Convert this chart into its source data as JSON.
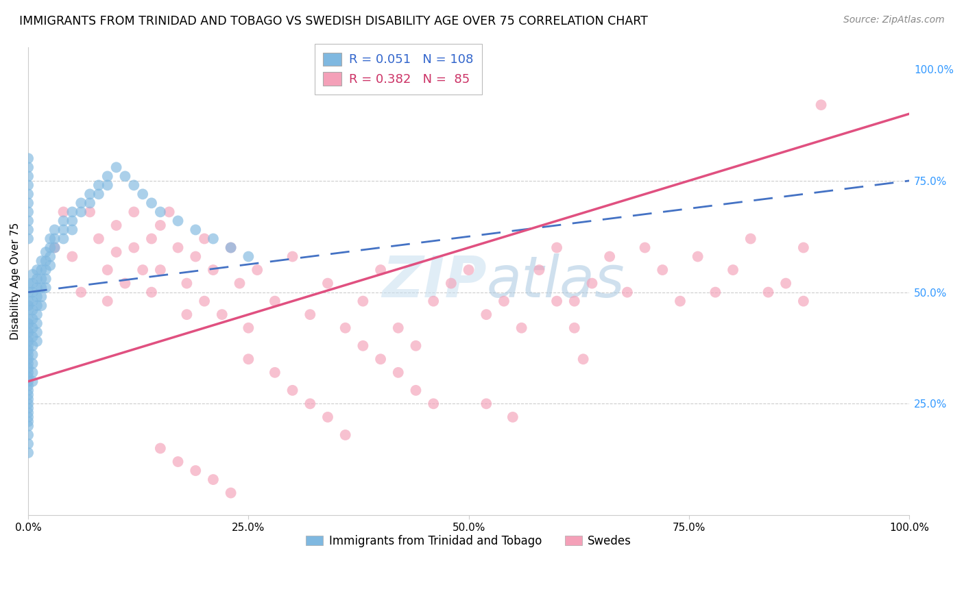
{
  "title": "IMMIGRANTS FROM TRINIDAD AND TOBAGO VS SWEDISH DISABILITY AGE OVER 75 CORRELATION CHART",
  "source": "Source: ZipAtlas.com",
  "ylabel": "Disability Age Over 75",
  "xlim": [
    0.0,
    1.0
  ],
  "ylim": [
    0.0,
    1.05
  ],
  "xtick_labels": [
    "0.0%",
    "25.0%",
    "50.0%",
    "75.0%",
    "100.0%"
  ],
  "xtick_vals": [
    0.0,
    0.25,
    0.5,
    0.75,
    1.0
  ],
  "ytick_right_vals": [
    0.25,
    0.5,
    0.75,
    1.0
  ],
  "ytick_right_labels": [
    "25.0%",
    "50.0%",
    "75.0%",
    "100.0%"
  ],
  "blue_R": 0.051,
  "blue_N": 108,
  "pink_R": 0.382,
  "pink_N": 85,
  "blue_color": "#7fb8e0",
  "pink_color": "#f4a0b8",
  "blue_line_color": "#4472c4",
  "pink_line_color": "#e05080",
  "legend_label_blue": "Immigrants from Trinidad and Tobago",
  "legend_label_pink": "Swedes",
  "blue_scatter_x": [
    0.0,
    0.0,
    0.0,
    0.0,
    0.0,
    0.0,
    0.0,
    0.0,
    0.0,
    0.0,
    0.0,
    0.0,
    0.0,
    0.0,
    0.0,
    0.0,
    0.0,
    0.0,
    0.0,
    0.0,
    0.0,
    0.0,
    0.0,
    0.0,
    0.0,
    0.0,
    0.0,
    0.0,
    0.0,
    0.0,
    0.005,
    0.005,
    0.005,
    0.005,
    0.005,
    0.005,
    0.005,
    0.005,
    0.005,
    0.005,
    0.005,
    0.005,
    0.005,
    0.01,
    0.01,
    0.01,
    0.01,
    0.01,
    0.01,
    0.01,
    0.01,
    0.01,
    0.015,
    0.015,
    0.015,
    0.015,
    0.015,
    0.015,
    0.02,
    0.02,
    0.02,
    0.02,
    0.02,
    0.025,
    0.025,
    0.025,
    0.025,
    0.03,
    0.03,
    0.03,
    0.04,
    0.04,
    0.04,
    0.05,
    0.05,
    0.05,
    0.06,
    0.06,
    0.07,
    0.07,
    0.08,
    0.08,
    0.09,
    0.09,
    0.1,
    0.11,
    0.12,
    0.13,
    0.14,
    0.15,
    0.17,
    0.19,
    0.21,
    0.23,
    0.25,
    0.0,
    0.0,
    0.0,
    0.0,
    0.0,
    0.0,
    0.0,
    0.0,
    0.0,
    0.0,
    0.0,
    0.0,
    0.0
  ],
  "blue_scatter_y": [
    0.52,
    0.5,
    0.48,
    0.47,
    0.46,
    0.44,
    0.43,
    0.42,
    0.41,
    0.4,
    0.39,
    0.38,
    0.37,
    0.36,
    0.35,
    0.34,
    0.33,
    0.32,
    0.31,
    0.3,
    0.29,
    0.28,
    0.27,
    0.26,
    0.25,
    0.24,
    0.23,
    0.22,
    0.21,
    0.2,
    0.54,
    0.52,
    0.5,
    0.48,
    0.46,
    0.44,
    0.42,
    0.4,
    0.38,
    0.36,
    0.34,
    0.32,
    0.3,
    0.55,
    0.53,
    0.51,
    0.49,
    0.47,
    0.45,
    0.43,
    0.41,
    0.39,
    0.57,
    0.55,
    0.53,
    0.51,
    0.49,
    0.47,
    0.59,
    0.57,
    0.55,
    0.53,
    0.51,
    0.62,
    0.6,
    0.58,
    0.56,
    0.64,
    0.62,
    0.6,
    0.66,
    0.64,
    0.62,
    0.68,
    0.66,
    0.64,
    0.7,
    0.68,
    0.72,
    0.7,
    0.74,
    0.72,
    0.76,
    0.74,
    0.78,
    0.76,
    0.74,
    0.72,
    0.7,
    0.68,
    0.66,
    0.64,
    0.62,
    0.6,
    0.58,
    0.8,
    0.78,
    0.76,
    0.74,
    0.72,
    0.7,
    0.68,
    0.66,
    0.64,
    0.62,
    0.18,
    0.16,
    0.14
  ],
  "pink_scatter_x": [
    0.03,
    0.04,
    0.05,
    0.06,
    0.07,
    0.08,
    0.09,
    0.09,
    0.1,
    0.1,
    0.11,
    0.12,
    0.12,
    0.13,
    0.14,
    0.14,
    0.15,
    0.15,
    0.16,
    0.17,
    0.18,
    0.18,
    0.19,
    0.2,
    0.2,
    0.21,
    0.22,
    0.23,
    0.24,
    0.25,
    0.26,
    0.28,
    0.3,
    0.32,
    0.34,
    0.36,
    0.38,
    0.4,
    0.42,
    0.44,
    0.46,
    0.48,
    0.5,
    0.52,
    0.54,
    0.56,
    0.58,
    0.6,
    0.62,
    0.64,
    0.66,
    0.68,
    0.7,
    0.72,
    0.74,
    0.76,
    0.78,
    0.8,
    0.82,
    0.84,
    0.86,
    0.88,
    0.9,
    0.38,
    0.4,
    0.42,
    0.44,
    0.46,
    0.25,
    0.28,
    0.3,
    0.32,
    0.34,
    0.36,
    0.15,
    0.17,
    0.19,
    0.21,
    0.23,
    0.6,
    0.62,
    0.63,
    0.52,
    0.55,
    0.88
  ],
  "pink_scatter_y": [
    0.6,
    0.68,
    0.58,
    0.5,
    0.68,
    0.62,
    0.55,
    0.48,
    0.65,
    0.59,
    0.52,
    0.68,
    0.6,
    0.55,
    0.62,
    0.5,
    0.65,
    0.55,
    0.68,
    0.6,
    0.52,
    0.45,
    0.58,
    0.62,
    0.48,
    0.55,
    0.45,
    0.6,
    0.52,
    0.42,
    0.55,
    0.48,
    0.58,
    0.45,
    0.52,
    0.42,
    0.48,
    0.55,
    0.42,
    0.38,
    0.48,
    0.52,
    0.55,
    0.45,
    0.48,
    0.42,
    0.55,
    0.6,
    0.48,
    0.52,
    0.58,
    0.5,
    0.6,
    0.55,
    0.48,
    0.58,
    0.5,
    0.55,
    0.62,
    0.5,
    0.52,
    0.6,
    0.92,
    0.38,
    0.35,
    0.32,
    0.28,
    0.25,
    0.35,
    0.32,
    0.28,
    0.25,
    0.22,
    0.18,
    0.15,
    0.12,
    0.1,
    0.08,
    0.05,
    0.48,
    0.42,
    0.35,
    0.25,
    0.22,
    0.48
  ]
}
